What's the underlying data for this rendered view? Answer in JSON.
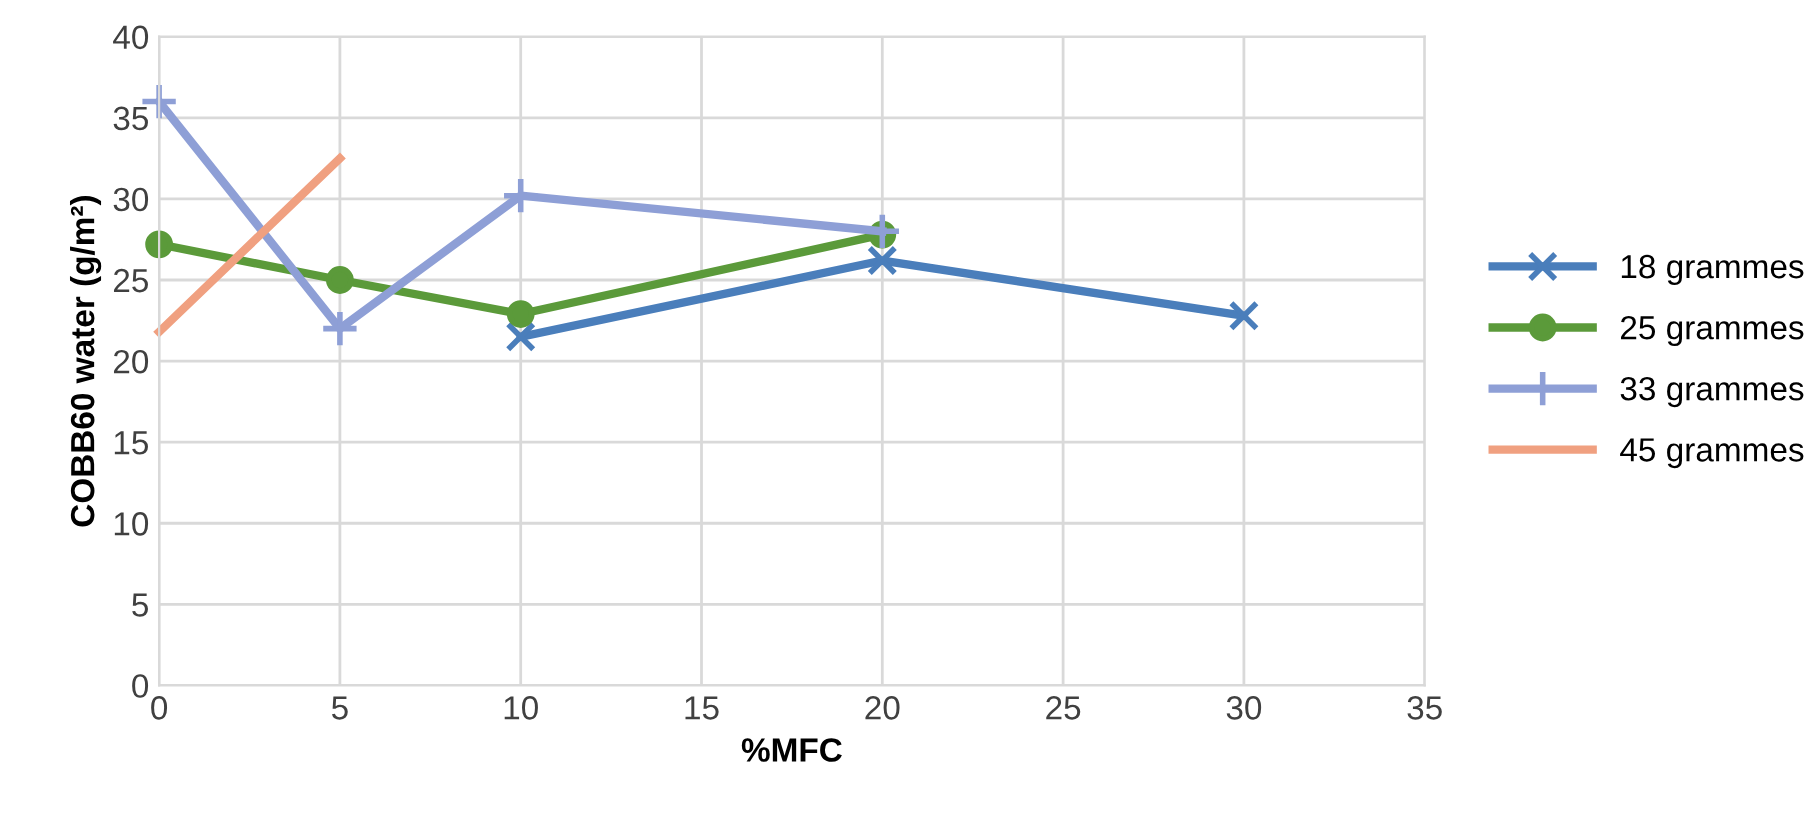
{
  "chart_data": {
    "type": "line",
    "xlabel": "%MFC",
    "ylabel": "COBB60 water (g/m²)",
    "xlim": [
      0,
      35
    ],
    "xticks": [
      0,
      5,
      10,
      15,
      20,
      25,
      30,
      35
    ],
    "ylim": [
      0,
      40
    ],
    "yticks": [
      0,
      5,
      10,
      15,
      20,
      25,
      30,
      35,
      40
    ],
    "grid": true,
    "legend": "right",
    "line_style": "solid",
    "series": [
      {
        "name": "18 grammes",
        "color": "#4a7ebb",
        "marker": "cross",
        "x": [
          10,
          20,
          30
        ],
        "values": [
          21.5,
          26.2,
          22.8
        ]
      },
      {
        "name": "25 grammes",
        "color": "#5b9a3a",
        "marker": "circle",
        "x": [
          0,
          5,
          10,
          20
        ],
        "values": [
          27.2,
          25,
          22.9,
          27.8
        ]
      },
      {
        "name": "33 grammes",
        "color": "#8e9fd6",
        "marker": "plus",
        "x": [
          0,
          5,
          10,
          20
        ],
        "values": [
          36,
          22,
          30.2,
          28
        ]
      },
      {
        "name": "45 grammes",
        "color": "#f0a080",
        "marker": "none",
        "x": [
          0,
          5
        ],
        "values": [
          21.8,
          32.5
        ]
      }
    ]
  }
}
